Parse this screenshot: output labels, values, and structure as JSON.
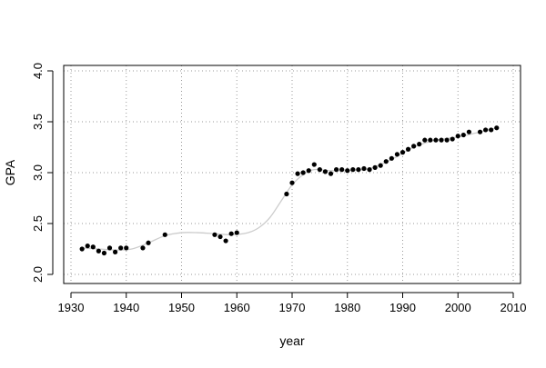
{
  "chart_data": {
    "type": "scatter",
    "title": "",
    "xlabel": "year",
    "ylabel": "GPA",
    "xlim": [
      1930,
      2010
    ],
    "ylim": [
      2.0,
      4.0
    ],
    "x_ticks": [
      1930,
      1940,
      1950,
      1960,
      1970,
      1980,
      1990,
      2000,
      2010
    ],
    "y_ticks": [
      2.0,
      2.5,
      3.0,
      3.5,
      4.0
    ],
    "x_tick_labels": [
      "1930",
      "1940",
      "1950",
      "1960",
      "1970",
      "1980",
      "1990",
      "2000",
      "2010"
    ],
    "y_tick_labels": [
      "2.0",
      "2.5",
      "3.0",
      "3.5",
      "4.0"
    ],
    "grid": true,
    "grid_style": "dotted",
    "colors": {
      "points": "#000000",
      "smooth": "#cccccc",
      "grid": "#9a9a9a",
      "axis": "#000000"
    },
    "points": [
      {
        "x": 1932,
        "y": 2.25
      },
      {
        "x": 1933,
        "y": 2.28
      },
      {
        "x": 1934,
        "y": 2.27
      },
      {
        "x": 1935,
        "y": 2.23
      },
      {
        "x": 1936,
        "y": 2.21
      },
      {
        "x": 1937,
        "y": 2.26
      },
      {
        "x": 1938,
        "y": 2.22
      },
      {
        "x": 1939,
        "y": 2.26
      },
      {
        "x": 1940,
        "y": 2.26
      },
      {
        "x": 1943,
        "y": 2.26
      },
      {
        "x": 1944,
        "y": 2.31
      },
      {
        "x": 1947,
        "y": 2.39
      },
      {
        "x": 1956,
        "y": 2.39
      },
      {
        "x": 1957,
        "y": 2.37
      },
      {
        "x": 1958,
        "y": 2.33
      },
      {
        "x": 1959,
        "y": 2.4
      },
      {
        "x": 1960,
        "y": 2.41
      },
      {
        "x": 1969,
        "y": 2.79
      },
      {
        "x": 1970,
        "y": 2.9
      },
      {
        "x": 1971,
        "y": 2.99
      },
      {
        "x": 1972,
        "y": 3.0
      },
      {
        "x": 1973,
        "y": 3.02
      },
      {
        "x": 1974,
        "y": 3.08
      },
      {
        "x": 1975,
        "y": 3.03
      },
      {
        "x": 1976,
        "y": 3.01
      },
      {
        "x": 1977,
        "y": 2.99
      },
      {
        "x": 1978,
        "y": 3.03
      },
      {
        "x": 1979,
        "y": 3.03
      },
      {
        "x": 1980,
        "y": 3.02
      },
      {
        "x": 1981,
        "y": 3.03
      },
      {
        "x": 1982,
        "y": 3.03
      },
      {
        "x": 1983,
        "y": 3.04
      },
      {
        "x": 1984,
        "y": 3.03
      },
      {
        "x": 1985,
        "y": 3.05
      },
      {
        "x": 1986,
        "y": 3.07
      },
      {
        "x": 1987,
        "y": 3.11
      },
      {
        "x": 1988,
        "y": 3.14
      },
      {
        "x": 1989,
        "y": 3.18
      },
      {
        "x": 1990,
        "y": 3.2
      },
      {
        "x": 1991,
        "y": 3.23
      },
      {
        "x": 1992,
        "y": 3.26
      },
      {
        "x": 1993,
        "y": 3.28
      },
      {
        "x": 1994,
        "y": 3.32
      },
      {
        "x": 1995,
        "y": 3.32
      },
      {
        "x": 1996,
        "y": 3.32
      },
      {
        "x": 1997,
        "y": 3.32
      },
      {
        "x": 1998,
        "y": 3.32
      },
      {
        "x": 1999,
        "y": 3.33
      },
      {
        "x": 2000,
        "y": 3.36
      },
      {
        "x": 2001,
        "y": 3.37
      },
      {
        "x": 2002,
        "y": 3.4
      },
      {
        "x": 2004,
        "y": 3.4
      },
      {
        "x": 2005,
        "y": 3.42
      },
      {
        "x": 2006,
        "y": 3.42
      },
      {
        "x": 2007,
        "y": 3.44
      }
    ],
    "smooth": [
      {
        "x": 1932,
        "y": 2.26
      },
      {
        "x": 1935,
        "y": 2.25
      },
      {
        "x": 1938,
        "y": 2.24
      },
      {
        "x": 1941,
        "y": 2.25
      },
      {
        "x": 1944,
        "y": 2.31
      },
      {
        "x": 1947,
        "y": 2.38
      },
      {
        "x": 1950,
        "y": 2.41
      },
      {
        "x": 1953,
        "y": 2.41
      },
      {
        "x": 1956,
        "y": 2.4
      },
      {
        "x": 1959,
        "y": 2.39
      },
      {
        "x": 1962,
        "y": 2.41
      },
      {
        "x": 1964,
        "y": 2.46
      },
      {
        "x": 1966,
        "y": 2.56
      },
      {
        "x": 1968,
        "y": 2.72
      },
      {
        "x": 1970,
        "y": 2.88
      },
      {
        "x": 1972,
        "y": 2.98
      },
      {
        "x": 1974,
        "y": 3.03
      },
      {
        "x": 1977,
        "y": 3.02
      },
      {
        "x": 1980,
        "y": 3.02
      },
      {
        "x": 1984,
        "y": 3.04
      },
      {
        "x": 1988,
        "y": 3.13
      },
      {
        "x": 1992,
        "y": 3.25
      },
      {
        "x": 1996,
        "y": 3.32
      },
      {
        "x": 2000,
        "y": 3.35
      },
      {
        "x": 2004,
        "y": 3.4
      },
      {
        "x": 2007,
        "y": 3.44
      }
    ]
  }
}
